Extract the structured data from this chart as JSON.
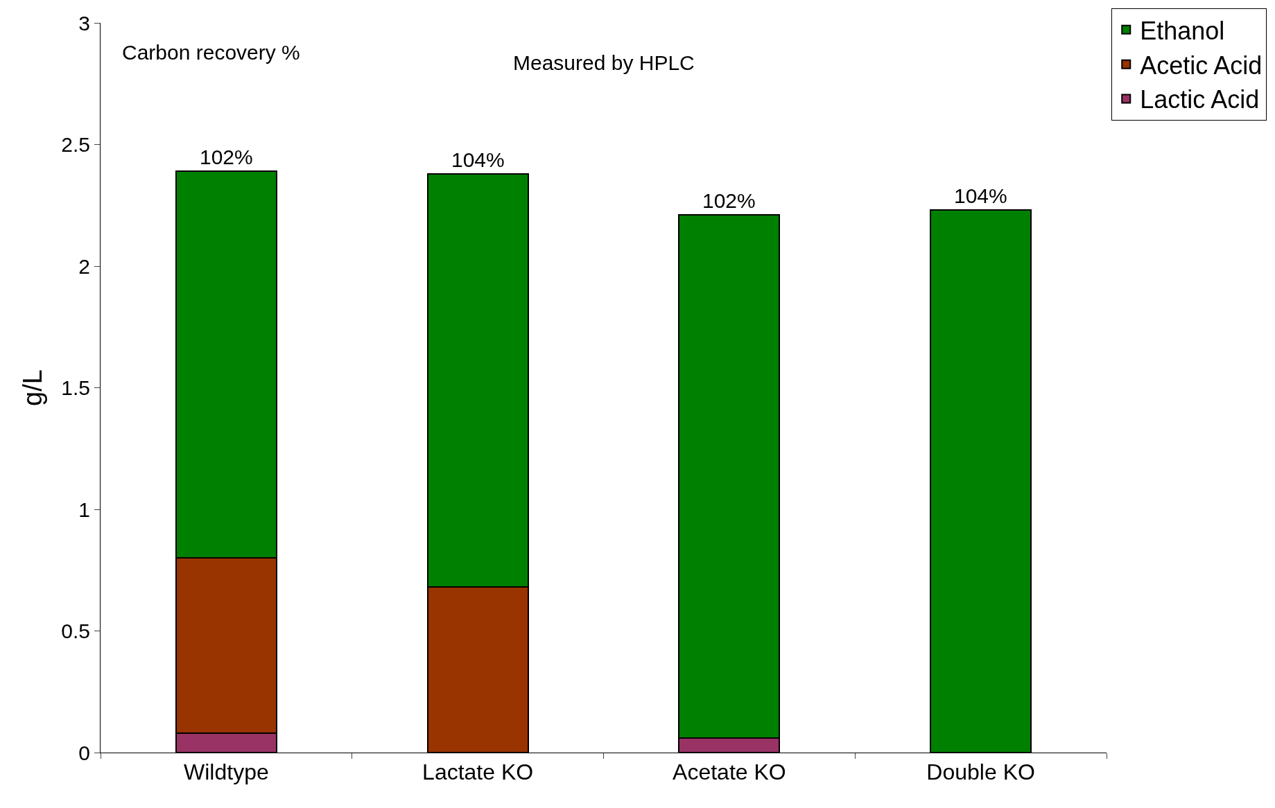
{
  "chart_data": {
    "type": "bar",
    "stacked": true,
    "ylabel": "g/L",
    "categories": [
      "Wildtype",
      "Lactate KO",
      "Acetate KO",
      "Double KO"
    ],
    "series": [
      {
        "name": "Lactic Acid",
        "color": "#993366",
        "values": [
          0.08,
          null,
          0.06,
          null
        ]
      },
      {
        "name": "Acetic Acid",
        "color": "#993300",
        "values": [
          0.72,
          0.68,
          null,
          null
        ]
      },
      {
        "name": "Ethanol",
        "color": "#008000",
        "values": [
          1.59,
          1.7,
          2.15,
          2.23
        ]
      }
    ],
    "annotations": [
      "Carbon recovery %",
      "Measured by HPLC",
      {
        "text": "102%",
        "x": "Wildtype",
        "y": 2.39
      },
      {
        "text": "104%",
        "x": "Lactate KO",
        "y": 2.38
      },
      {
        "text": "102%",
        "x": "Acetate KO",
        "y": 2.21
      },
      {
        "text": "104%",
        "x": "Double KO",
        "y": 2.23
      }
    ],
    "ylim": [
      0,
      3
    ],
    "yticks": [
      0,
      0.5,
      1,
      1.5,
      2,
      2.5,
      3
    ],
    "legend": "top right"
  }
}
